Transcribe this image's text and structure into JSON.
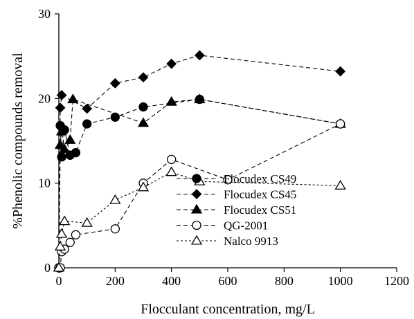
{
  "chart_data": {
    "type": "scatter",
    "xlabel": "Flocculant concentration, mg/L",
    "ylabel": "%Phenolic compounds removal",
    "xlim": [
      0,
      1200
    ],
    "ylim": [
      0,
      30
    ],
    "xticks": [
      0,
      200,
      400,
      600,
      800,
      1000,
      1200
    ],
    "yticks": [
      0,
      10,
      20,
      30
    ],
    "grid": false,
    "legend_position": "bottom-right",
    "series": [
      {
        "name": "Flocudex CS49",
        "marker": "filled-circle",
        "line": "dashed",
        "x": [
          0,
          5,
          10,
          20,
          40,
          60,
          100,
          200,
          300,
          500,
          1000
        ],
        "y": [
          0,
          16.8,
          13.1,
          16.3,
          13.3,
          13.6,
          17.0,
          17.8,
          19.0,
          19.9,
          17.0
        ]
      },
      {
        "name": "Flocudex CS45",
        "marker": "filled-diamond",
        "line": "dashed",
        "x": [
          0,
          5,
          10,
          100,
          200,
          300,
          400,
          500,
          1000
        ],
        "y": [
          0,
          18.9,
          20.4,
          18.8,
          21.8,
          22.5,
          24.1,
          25.1,
          23.2
        ]
      },
      {
        "name": "Flocudex CS51",
        "marker": "filled-triangle",
        "line": "dashed",
        "x": [
          0,
          5,
          10,
          20,
          40,
          50,
          300,
          400,
          500,
          1000
        ],
        "y": [
          0,
          14.5,
          16.1,
          14.0,
          15.1,
          19.9,
          17.1,
          19.6,
          19.9,
          17.0
        ]
      },
      {
        "name": "QG-2001",
        "marker": "open-circle",
        "line": "dashed",
        "x": [
          0,
          5,
          10,
          20,
          40,
          60,
          200,
          300,
          400,
          600,
          1000
        ],
        "y": [
          0,
          0,
          1.9,
          2.2,
          3.0,
          3.9,
          4.6,
          10.0,
          12.8,
          10.4,
          17.0
        ]
      },
      {
        "name": "Nalco 9913",
        "marker": "open-triangle",
        "line": "dotted",
        "x": [
          0,
          5,
          10,
          20,
          100,
          200,
          300,
          400,
          500,
          1000
        ],
        "y": [
          0,
          2.5,
          4.0,
          5.5,
          5.3,
          8.0,
          9.5,
          11.3,
          10.2,
          9.7
        ]
      }
    ]
  }
}
